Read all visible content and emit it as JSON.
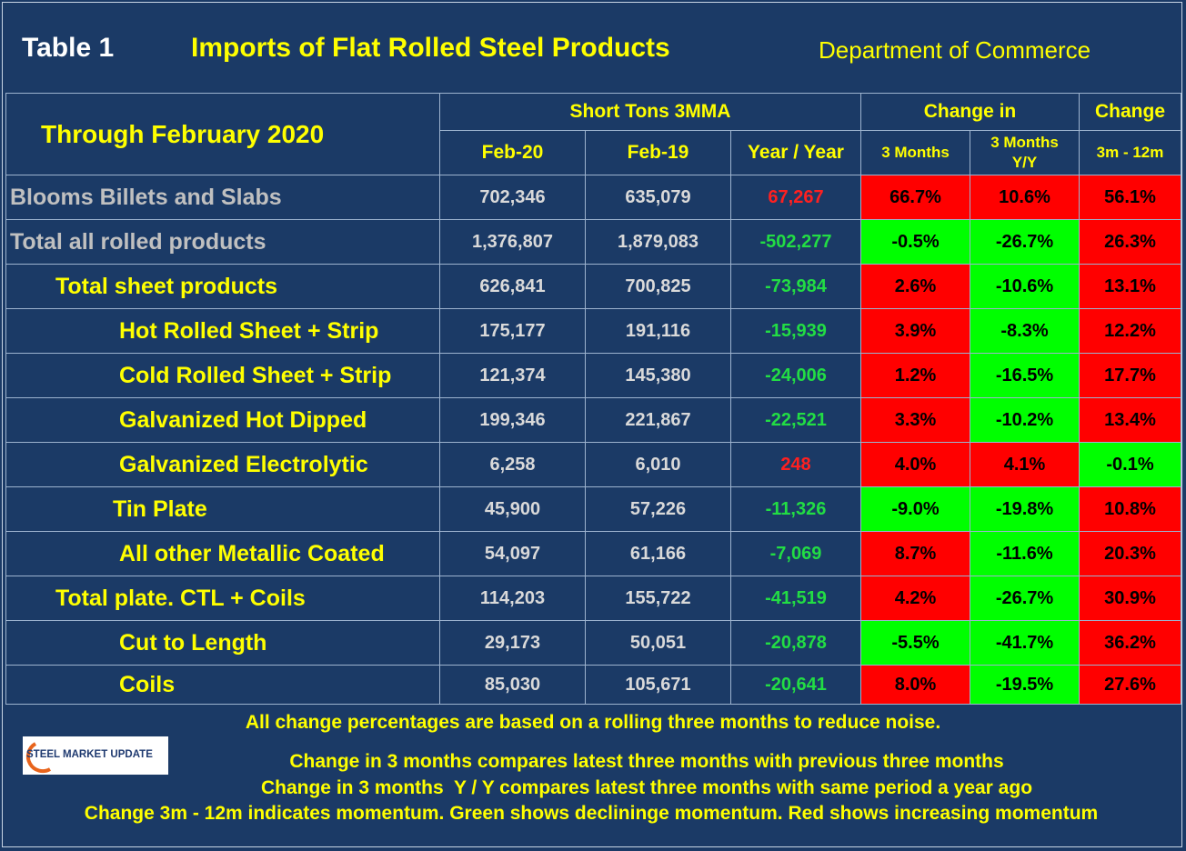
{
  "header": {
    "table_label": "Table 1",
    "title": "Imports of Flat Rolled Steel Products",
    "source": "Department of Commerce"
  },
  "table": {
    "period": "Through February 2020",
    "group_headers": [
      "Short Tons 3MMA",
      "Change in",
      "Change"
    ],
    "columns": [
      "Feb-20",
      "Feb-19",
      "Year / Year",
      "3 Months",
      "3 Months Y/Y",
      "3m - 12m"
    ],
    "rows": [
      [
        "Blooms Billets and Slabs",
        "702,346",
        "635,079",
        "67,267",
        "66.7%",
        "10.6%",
        "56.1%"
      ],
      [
        "Total all rolled products",
        "1,376,807",
        "1,879,083",
        "-502,277",
        "-0.5%",
        "-26.7%",
        "26.3%"
      ],
      [
        "Total sheet products",
        "626,841",
        "700,825",
        "-73,984",
        "2.6%",
        "-10.6%",
        "13.1%"
      ],
      [
        "Hot Rolled Sheet + Strip",
        "175,177",
        "191,116",
        "-15,939",
        "3.9%",
        "-8.3%",
        "12.2%"
      ],
      [
        "Cold Rolled Sheet + Strip",
        "121,374",
        "145,380",
        "-24,006",
        "1.2%",
        "-16.5%",
        "17.7%"
      ],
      [
        "Galvanized Hot Dipped",
        "199,346",
        "221,867",
        "-22,521",
        "3.3%",
        "-10.2%",
        "13.4%"
      ],
      [
        "Galvanized Electrolytic",
        "6,258",
        "6,010",
        "248",
        "4.0%",
        "4.1%",
        "-0.1%"
      ],
      [
        "Tin Plate",
        "45,900",
        "57,226",
        "-11,326",
        "-9.0%",
        "-19.8%",
        "10.8%"
      ],
      [
        "All other Metallic Coated",
        "54,097",
        "61,166",
        "-7,069",
        "8.7%",
        "-11.6%",
        "20.3%"
      ],
      [
        "Total plate. CTL + Coils",
        "114,203",
        "155,722",
        "-41,519",
        "4.2%",
        "-26.7%",
        "30.9%"
      ],
      [
        "Cut to Length",
        "29,173",
        "50,051",
        "-20,878",
        "-5.5%",
        "-41.7%",
        "36.2%"
      ],
      [
        "Coils",
        "85,030",
        "105,671",
        "-20,641",
        "8.0%",
        "-19.5%",
        "27.6%"
      ]
    ]
  },
  "footer": {
    "logo": "STEEL MARKET UPDATE",
    "notes": [
      "All change percentages are based on a rolling three months to reduce noise.",
      "Change in 3 months compares latest three months with previous three months",
      "Change in 3 months  Y / Y compares latest three months with same period a year ago",
      "Change 3m - 12m indicates momentum. Green shows decliningе momentum. Red shows increasing momentum"
    ]
  }
}
